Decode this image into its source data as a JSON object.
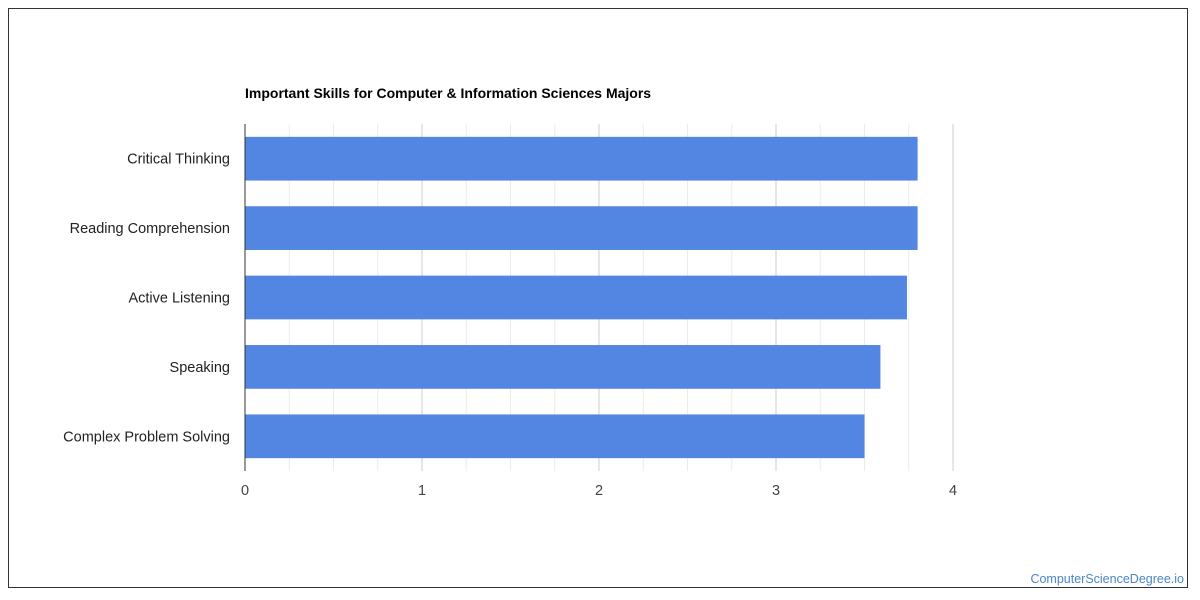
{
  "chart_data": {
    "type": "bar",
    "orientation": "horizontal",
    "title": "Important Skills for Computer & Information Sciences Majors",
    "categories": [
      "Critical Thinking",
      "Reading Comprehension",
      "Active Listening",
      "Speaking",
      "Complex Problem Solving"
    ],
    "values": [
      3.8,
      3.8,
      3.74,
      3.59,
      3.5
    ],
    "xlim": [
      0,
      4
    ],
    "xticks": [
      "0",
      "1",
      "2",
      "3",
      "4"
    ],
    "grid": true,
    "legend": "none",
    "bar_color": "#5286e2"
  },
  "footer": {
    "source_text": "ComputerScienceDegree.io"
  }
}
